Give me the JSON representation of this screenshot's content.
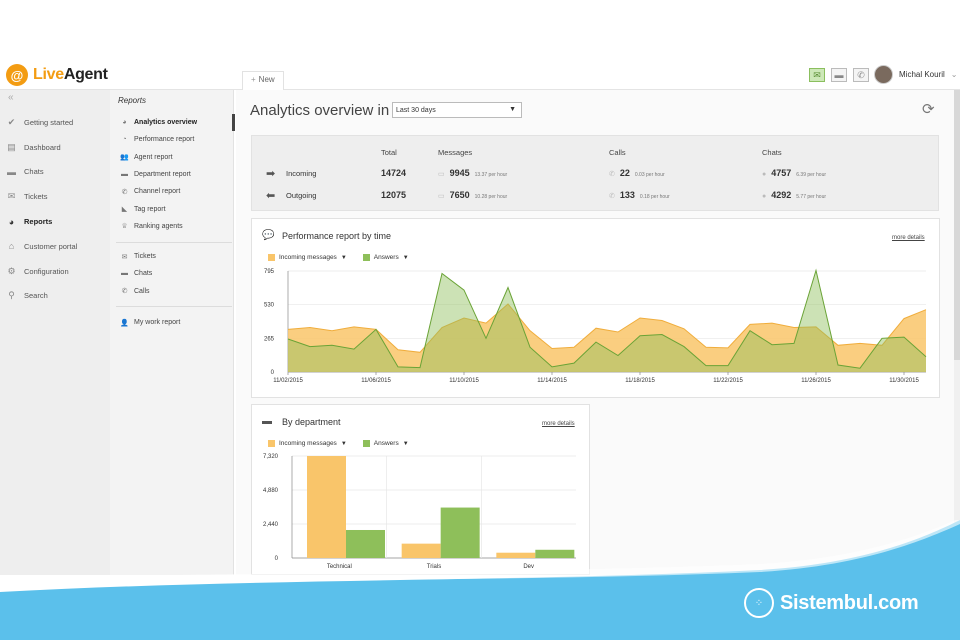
{
  "app": {
    "logo_text_1": "Live",
    "logo_text_2": "Agent",
    "new_tab": "New"
  },
  "header": {
    "user_name": "Michal Kouril"
  },
  "sidebar": {
    "collapse": "«",
    "items": [
      {
        "label": "Getting started",
        "icon": "check-icon"
      },
      {
        "label": "Dashboard",
        "icon": "dashboard-icon"
      },
      {
        "label": "Chats",
        "icon": "chat-icon"
      },
      {
        "label": "Tickets",
        "icon": "envelope-icon"
      },
      {
        "label": "Reports",
        "icon": "pie-chart-icon"
      },
      {
        "label": "Customer portal",
        "icon": "building-icon"
      },
      {
        "label": "Configuration",
        "icon": "gear-icon"
      },
      {
        "label": "Search",
        "icon": "search-icon"
      }
    ]
  },
  "subsidebar": {
    "title": "Reports",
    "group1": [
      "Analytics overview",
      "Performance report",
      "Agent report",
      "Department report",
      "Channel report",
      "Tag report",
      "Ranking agents"
    ],
    "group2": [
      "Tickets",
      "Chats",
      "Calls"
    ],
    "group3": [
      "My work report"
    ]
  },
  "main": {
    "title": "Analytics overview in",
    "period": "Last 30 days",
    "summary": {
      "headers": {
        "total": "Total",
        "messages": "Messages",
        "calls": "Calls",
        "chats": "Chats"
      },
      "rows": [
        {
          "label": "Incoming",
          "total": "14724",
          "messages": "9945",
          "messages_rate": "13.37 per hour",
          "calls": "22",
          "calls_rate": "0.03 per hour",
          "chats": "4757",
          "chats_rate": "6.39 per hour"
        },
        {
          "label": "Outgoing",
          "total": "12075",
          "messages": "7650",
          "messages_rate": "10.28 per hour",
          "calls": "133",
          "calls_rate": "0.18 per hour",
          "chats": "4292",
          "chats_rate": "5.77 per hour"
        }
      ]
    },
    "perf_panel": {
      "title": "Performance report by time",
      "more": "more details"
    },
    "dept_panel": {
      "title": "By department",
      "more": "more details"
    }
  },
  "colors": {
    "incoming": "#f9c56a",
    "answers": "#8ebf5a",
    "answers_line": "#6aa336"
  },
  "chart_data": [
    {
      "type": "area",
      "legend": [
        "Incoming messages",
        "Answers"
      ],
      "y_ticks": [
        "0",
        "265",
        "530",
        "795"
      ],
      "ylim": [
        0,
        795
      ],
      "x_ticks": [
        "11/02/2015",
        "11/06/2015",
        "11/10/2015",
        "11/14/2015",
        "11/18/2015",
        "11/22/2015",
        "11/26/2015",
        "11/30/2015"
      ],
      "x": [
        "11/02/2015",
        "11/03/2015",
        "11/04/2015",
        "11/05/2015",
        "11/06/2015",
        "11/07/2015",
        "11/08/2015",
        "11/09/2015",
        "11/10/2015",
        "11/11/2015",
        "11/12/2015",
        "11/13/2015",
        "11/14/2015",
        "11/15/2015",
        "11/16/2015",
        "11/17/2015",
        "11/18/2015",
        "11/19/2015",
        "11/20/2015",
        "11/21/2015",
        "11/22/2015",
        "11/23/2015",
        "11/24/2015",
        "11/25/2015",
        "11/26/2015",
        "11/27/2015",
        "11/28/2015",
        "11/29/2015",
        "11/30/2015",
        "12/01/2015"
      ],
      "series": [
        {
          "name": "Incoming messages",
          "values": [
            335,
            350,
            325,
            355,
            335,
            175,
            155,
            350,
            425,
            385,
            535,
            325,
            185,
            195,
            345,
            315,
            425,
            405,
            340,
            195,
            190,
            375,
            385,
            350,
            355,
            210,
            225,
            210,
            420,
            490
          ]
        },
        {
          "name": "Answers",
          "values": [
            260,
            200,
            210,
            180,
            335,
            40,
            35,
            775,
            645,
            265,
            665,
            195,
            40,
            70,
            235,
            130,
            285,
            295,
            200,
            50,
            50,
            325,
            215,
            225,
            800,
            55,
            30,
            265,
            275,
            120
          ]
        }
      ]
    },
    {
      "type": "bar",
      "legend": [
        "Incoming messages",
        "Answers"
      ],
      "y_ticks": [
        "0",
        "2,440",
        "4,880",
        "7,320"
      ],
      "ylim": [
        0,
        7320
      ],
      "categories": [
        "Technical",
        "Trials",
        "Dev"
      ],
      "series": [
        {
          "name": "Incoming messages",
          "values": [
            7320,
            1030,
            380
          ]
        },
        {
          "name": "Answers",
          "values": [
            2010,
            3620,
            590
          ]
        }
      ]
    }
  ],
  "watermark": {
    "text": "Sistembul.com"
  }
}
